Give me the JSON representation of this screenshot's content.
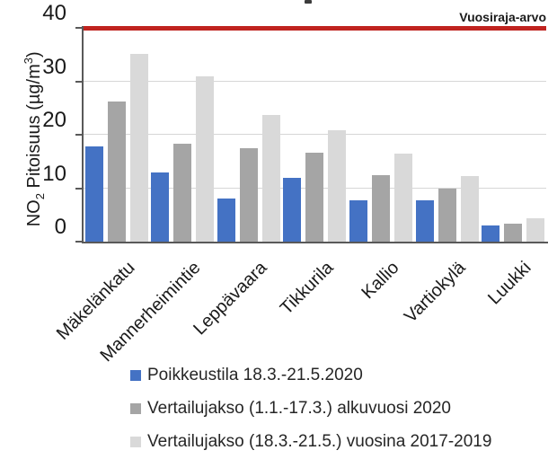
{
  "chart_data": {
    "type": "bar",
    "title": "",
    "categories": [
      "Mäkelänkatu",
      "Mannerheimintie",
      "Leppävaara",
      "Tikkurila",
      "Kallio",
      "Vartiokylä",
      "Luukki"
    ],
    "series": [
      {
        "name": "Poikkeustila 18.3.-21.5.2020",
        "color": "#4472C4",
        "values": [
          17.8,
          12.9,
          8.0,
          11.9,
          7.7,
          7.7,
          3.0
        ]
      },
      {
        "name": "Vertailujakso (1.1.-17.3.) alkuvuosi 2020",
        "color": "#A5A5A5",
        "values": [
          26.2,
          18.4,
          17.5,
          16.6,
          12.5,
          10.0,
          3.4
        ]
      },
      {
        "name": "Vertailujakso (18.3.-21.5.) vuosina 2017-2019",
        "color": "#D9D9D9",
        "values": [
          35.1,
          31.0,
          23.7,
          20.9,
          16.4,
          12.2,
          4.4
        ]
      }
    ],
    "xlabel": "",
    "ylabel": "NO₂ Pitoisuus (µg/m³)",
    "ylim": [
      0,
      40
    ],
    "yticks": [
      0,
      10,
      20,
      30,
      40
    ],
    "grid": true,
    "legend_position": "bottom-left",
    "reference_line": {
      "value": 40,
      "label": "Vuosiraja-arvo",
      "color": "#C0231F"
    }
  },
  "axes": {
    "y": {
      "tick_labels": [
        "0",
        "10",
        "20",
        "30",
        "40"
      ],
      "label_parts": {
        "base1": "NO",
        "sub": "2",
        "base2": " Pitoisuus (µg/m",
        "sup": "3",
        "base3": ")"
      }
    }
  },
  "colors": {
    "grid": "#D6D6D6",
    "axis": "#595959",
    "reference": "#C0231F"
  }
}
